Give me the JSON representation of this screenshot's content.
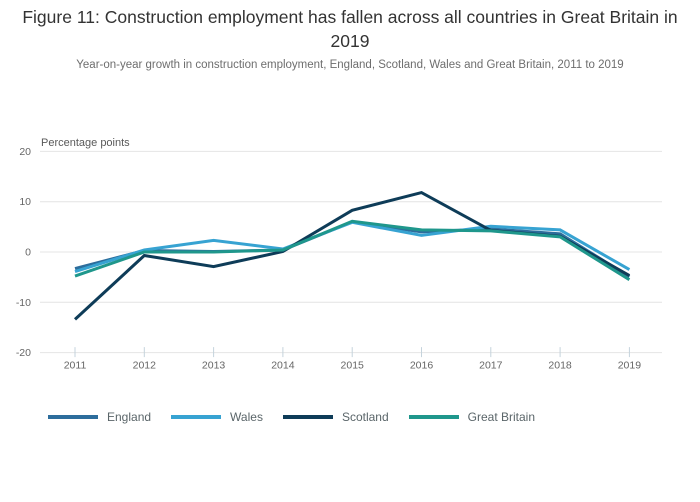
{
  "header": {
    "title": "Figure 11: Construction employment has fallen across all countries in Great Britain in 2019",
    "subtitle": "Year-on-year growth in construction employment, England, Scotland, Wales and Great Britain, 2011 to 2019"
  },
  "chart_data": {
    "type": "line",
    "title": "Figure 11: Construction employment has fallen across all countries in Great Britain in 2019",
    "subtitle": "Year-on-year growth in construction employment, England, Scotland, Wales and Great Britain, 2011 to 2019",
    "xlabel": "",
    "ylabel": "Percentage points",
    "x": [
      2011,
      2012,
      2013,
      2014,
      2015,
      2016,
      2017,
      2018,
      2019
    ],
    "ylim": [
      -20,
      20
    ],
    "yticks": [
      20,
      10,
      0,
      -10,
      -20
    ],
    "grid": true,
    "legend_position": "bottom",
    "series": [
      {
        "name": "England",
        "color": "#2d6d9c",
        "values": [
          -3.3,
          0.3,
          0.1,
          0.4,
          6.0,
          4.0,
          4.6,
          3.6,
          -4.9
        ]
      },
      {
        "name": "Wales",
        "color": "#37a3d2",
        "values": [
          -3.9,
          0.4,
          2.3,
          0.6,
          5.9,
          3.3,
          5.1,
          4.4,
          -3.5
        ]
      },
      {
        "name": "Scotland",
        "color": "#0e3c58",
        "values": [
          -13.4,
          -0.7,
          -2.9,
          0.1,
          8.3,
          11.8,
          4.3,
          3.1,
          -4.7
        ]
      },
      {
        "name": "Great Britain",
        "color": "#1f978c",
        "values": [
          -4.8,
          0.0,
          0.0,
          0.4,
          6.1,
          4.4,
          4.2,
          3.0,
          -5.5
        ]
      }
    ],
    "axis_text_color": "#666666",
    "gridline_color": "#e4e4e4",
    "tick_color": "#c5d3dc"
  }
}
